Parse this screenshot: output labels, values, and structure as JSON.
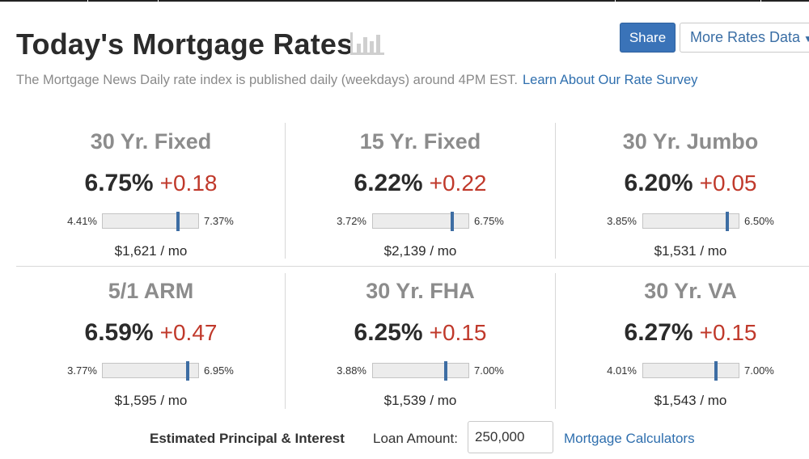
{
  "header": {
    "title": "Today's Mortgage Rates",
    "share_label": "Share",
    "more_label": "More Rates Data",
    "subtitle": "The Mortgage News Daily rate index is published daily (weekdays) around 4PM EST.",
    "survey_link": "Learn About Our Rate Survey"
  },
  "colors": {
    "accent": "#3a73b8",
    "change": "#c0392b",
    "marker": "#3d6da3",
    "link": "#2f6fae"
  },
  "cards": [
    {
      "title": "30 Yr. Fixed",
      "rate": "6.75%",
      "change": "+0.18",
      "low": "4.41%",
      "high": "7.37%",
      "position": 0.79,
      "monthly": "$1,621 / mo"
    },
    {
      "title": "15 Yr. Fixed",
      "rate": "6.22%",
      "change": "+0.22",
      "low": "3.72%",
      "high": "6.75%",
      "position": 0.83,
      "monthly": "$2,139 / mo"
    },
    {
      "title": "30 Yr. Jumbo",
      "rate": "6.20%",
      "change": "+0.05",
      "low": "3.85%",
      "high": "6.50%",
      "position": 0.88,
      "monthly": "$1,531 / mo"
    },
    {
      "title": "5/1 ARM",
      "rate": "6.59%",
      "change": "+0.47",
      "low": "3.77%",
      "high": "6.95%",
      "position": 0.89,
      "monthly": "$1,595 / mo"
    },
    {
      "title": "30 Yr. FHA",
      "rate": "6.25%",
      "change": "+0.15",
      "low": "3.88%",
      "high": "7.00%",
      "position": 0.76,
      "monthly": "$1,539 / mo"
    },
    {
      "title": "30 Yr. VA",
      "rate": "6.27%",
      "change": "+0.15",
      "low": "4.01%",
      "high": "7.00%",
      "position": 0.76,
      "monthly": "$1,543 / mo"
    }
  ],
  "footer": {
    "estimate_label": "Estimated Principal & Interest",
    "loan_label": "Loan Amount:",
    "loan_value": "250,000",
    "calculators_link": "Mortgage Calculators"
  }
}
